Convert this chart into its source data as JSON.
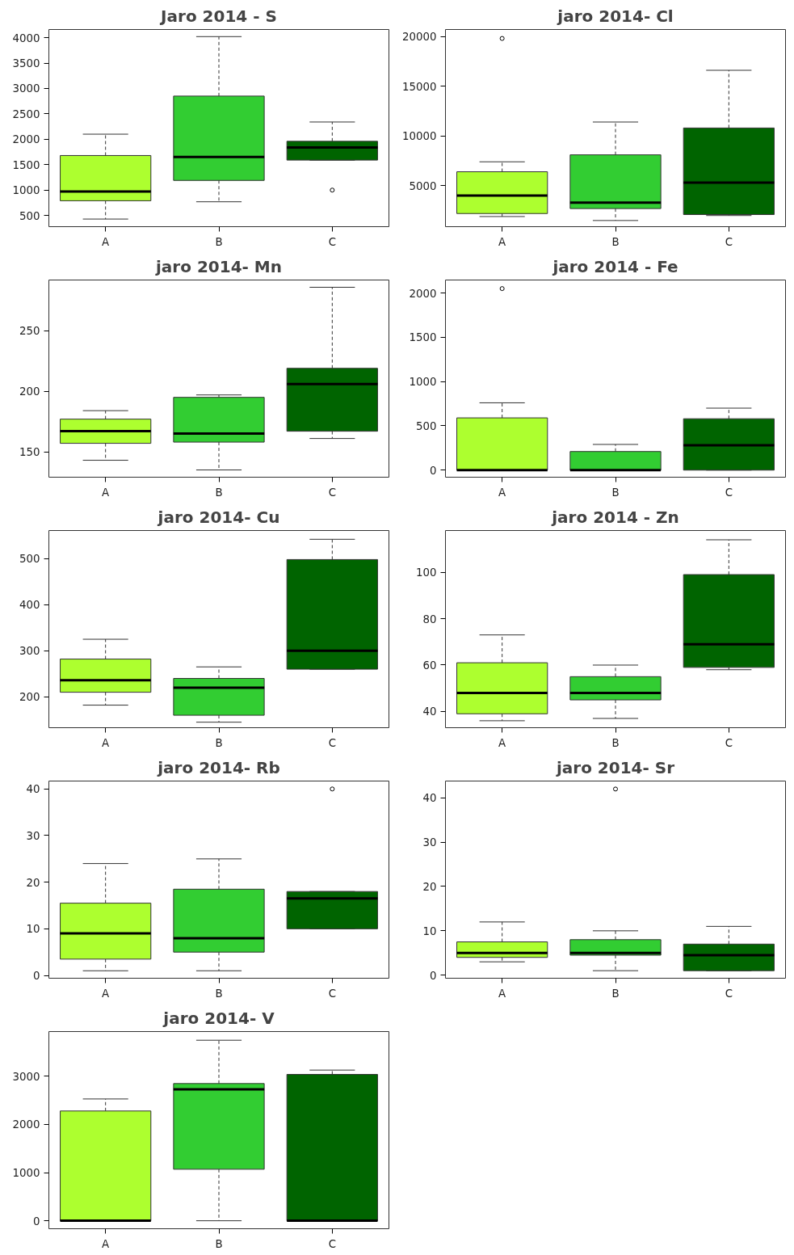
{
  "chart_data": [
    {
      "type": "box",
      "title": "Jaro 2014 - S",
      "categories": [
        "A",
        "B",
        "C"
      ],
      "colors": [
        "#adff2f",
        "#32cd32",
        "#006400"
      ],
      "ylim": [
        280,
        4160
      ],
      "yticks": [
        500,
        1000,
        1500,
        2000,
        2500,
        3000,
        3500,
        4000
      ],
      "boxes": [
        {
          "low": 430,
          "q1": 790,
          "median": 970,
          "q3": 1680,
          "high": 2100
        },
        {
          "low": 770,
          "q1": 1190,
          "median": 1650,
          "q3": 2850,
          "high": 4020
        },
        {
          "low": 1590,
          "q1": 1590,
          "median": 1840,
          "q3": 1960,
          "high": 2340,
          "outliers": [
            1000
          ]
        }
      ]
    },
    {
      "type": "box",
      "title": "jaro 2014- Cl",
      "categories": [
        "A",
        "B",
        "C"
      ],
      "colors": [
        "#adff2f",
        "#32cd32",
        "#006400"
      ],
      "ylim": [
        880,
        20700
      ],
      "yticks": [
        5000,
        10000,
        15000,
        20000
      ],
      "boxes": [
        {
          "low": 1900,
          "q1": 2200,
          "median": 4000,
          "q3": 6400,
          "high": 7400,
          "outliers": [
            19800
          ]
        },
        {
          "low": 1500,
          "q1": 2700,
          "median": 3300,
          "q3": 8100,
          "high": 11400
        },
        {
          "low": 2000,
          "q1": 2100,
          "median": 5300,
          "q3": 10800,
          "high": 16600
        }
      ]
    },
    {
      "type": "box",
      "title": "jaro 2014- Mn",
      "categories": [
        "A",
        "B",
        "C"
      ],
      "colors": [
        "#adff2f",
        "#32cd32",
        "#006400"
      ],
      "ylim": [
        129,
        292
      ],
      "yticks": [
        150,
        200,
        250
      ],
      "boxes": [
        {
          "low": 143,
          "q1": 157,
          "median": 167,
          "q3": 177,
          "high": 184
        },
        {
          "low": 135,
          "q1": 158,
          "median": 165,
          "q3": 195,
          "high": 197
        },
        {
          "low": 161,
          "q1": 167,
          "median": 206,
          "q3": 219,
          "high": 286
        }
      ]
    },
    {
      "type": "box",
      "title": "jaro 2014 - Fe",
      "categories": [
        "A",
        "B",
        "C"
      ],
      "colors": [
        "#adff2f",
        "#32cd32",
        "#006400"
      ],
      "ylim": [
        -80,
        2147
      ],
      "yticks": [
        0,
        500,
        1000,
        1500,
        2000
      ],
      "boxes": [
        {
          "low": 0,
          "q1": 0,
          "median": 0,
          "q3": 590,
          "high": 760,
          "outliers": [
            2050
          ]
        },
        {
          "low": 0,
          "q1": 0,
          "median": 0,
          "q3": 210,
          "high": 290
        },
        {
          "low": 0,
          "q1": 0,
          "median": 280,
          "q3": 580,
          "high": 700
        }
      ]
    },
    {
      "type": "box",
      "title": "jaro 2014- Cu",
      "categories": [
        "A",
        "B",
        "C"
      ],
      "colors": [
        "#adff2f",
        "#32cd32",
        "#006400"
      ],
      "ylim": [
        133,
        561
      ],
      "yticks": [
        200,
        300,
        400,
        500
      ],
      "boxes": [
        {
          "low": 182,
          "q1": 210,
          "median": 236,
          "q3": 282,
          "high": 325
        },
        {
          "low": 145,
          "q1": 160,
          "median": 220,
          "q3": 240,
          "high": 265
        },
        {
          "low": 260,
          "q1": 260,
          "median": 300,
          "q3": 498,
          "high": 542
        }
      ]
    },
    {
      "type": "box",
      "title": "jaro 2014 - Zn",
      "categories": [
        "A",
        "B",
        "C"
      ],
      "colors": [
        "#adff2f",
        "#32cd32",
        "#006400"
      ],
      "ylim": [
        33,
        118
      ],
      "yticks": [
        40,
        60,
        80,
        100
      ],
      "boxes": [
        {
          "low": 36,
          "q1": 39,
          "median": 48,
          "q3": 61,
          "high": 73
        },
        {
          "low": 37,
          "q1": 45,
          "median": 48,
          "q3": 55,
          "high": 60
        },
        {
          "low": 58,
          "q1": 59,
          "median": 69,
          "q3": 99,
          "high": 114
        }
      ]
    },
    {
      "type": "box",
      "title": "jaro 2014- Rb",
      "categories": [
        "A",
        "B",
        "C"
      ],
      "colors": [
        "#adff2f",
        "#32cd32",
        "#006400"
      ],
      "ylim": [
        -0.6,
        41.7
      ],
      "yticks": [
        0,
        10,
        20,
        30,
        40
      ],
      "boxes": [
        {
          "low": 1,
          "q1": 3.5,
          "median": 9,
          "q3": 15.5,
          "high": 24
        },
        {
          "low": 1,
          "q1": 5,
          "median": 8,
          "q3": 18.5,
          "high": 25
        },
        {
          "low": 10,
          "q1": 10,
          "median": 16.5,
          "q3": 18,
          "high": 18,
          "outliers": [
            40
          ]
        }
      ]
    },
    {
      "type": "box",
      "title": "jaro 2014- Sr",
      "categories": [
        "A",
        "B",
        "C"
      ],
      "colors": [
        "#adff2f",
        "#32cd32",
        "#006400"
      ],
      "ylim": [
        -0.7,
        43.8
      ],
      "yticks": [
        0,
        10,
        20,
        30,
        40
      ],
      "boxes": [
        {
          "low": 3,
          "q1": 4,
          "median": 5,
          "q3": 7.5,
          "high": 12
        },
        {
          "low": 1,
          "q1": 4.5,
          "median": 5,
          "q3": 8,
          "high": 10,
          "outliers": [
            42
          ]
        },
        {
          "low": 1,
          "q1": 1,
          "median": 4.5,
          "q3": 7,
          "high": 11
        }
      ]
    },
    {
      "type": "box",
      "title": "jaro 2014- V",
      "categories": [
        "A",
        "B",
        "C"
      ],
      "colors": [
        "#adff2f",
        "#32cd32",
        "#006400"
      ],
      "ylim": [
        -166,
        3930
      ],
      "yticks": [
        0,
        1000,
        2000,
        3000
      ],
      "boxes": [
        {
          "low": 0,
          "q1": 0,
          "median": 0,
          "q3": 2280,
          "high": 2530
        },
        {
          "low": 0,
          "q1": 1070,
          "median": 2730,
          "q3": 2850,
          "high": 3750
        },
        {
          "low": 0,
          "q1": 0,
          "median": 0,
          "q3": 3040,
          "high": 3130
        }
      ]
    }
  ]
}
